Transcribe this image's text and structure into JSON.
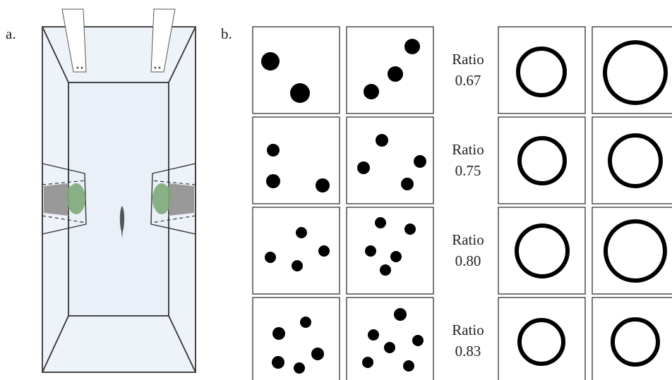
{
  "panel_a": {
    "label": "a."
  },
  "panel_b": {
    "label": "b.",
    "rows": [
      {
        "label": "Ratio",
        "value": "0.67"
      },
      {
        "label": "Ratio",
        "value": "0.75"
      },
      {
        "label": "Ratio",
        "value": "0.80"
      },
      {
        "label": "Ratio",
        "value": "0.83"
      }
    ]
  }
}
